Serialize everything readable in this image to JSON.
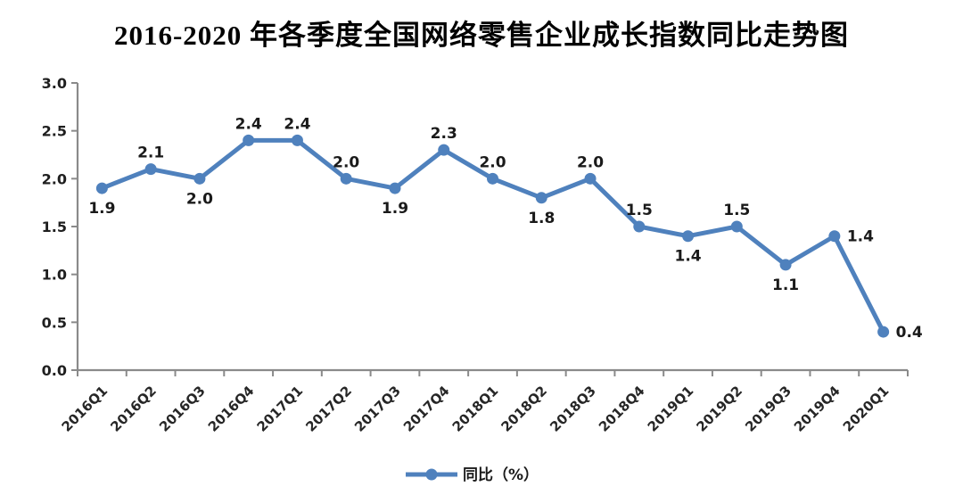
{
  "title": "2016-2020 年各季度全国网络零售企业成长指数同比走势图",
  "chart_data": {
    "type": "line",
    "title": "2016-2020 年各季度全国网络零售企业成长指数同比走势图",
    "categories": [
      "2016Q1",
      "2016Q2",
      "2016Q3",
      "2016Q4",
      "2017Q1",
      "2017Q2",
      "2017Q3",
      "2017Q4",
      "2018Q1",
      "2018Q2",
      "2018Q3",
      "2018Q4",
      "2019Q1",
      "2019Q2",
      "2019Q3",
      "2019Q4",
      "2020Q1"
    ],
    "series": [
      {
        "name": "同比（%）",
        "values": [
          1.9,
          2.1,
          2.0,
          2.4,
          2.4,
          2.0,
          1.9,
          2.3,
          2.0,
          1.8,
          2.0,
          1.5,
          1.4,
          1.5,
          1.1,
          1.4,
          0.4
        ],
        "color": "#4f81bd",
        "label_positions": [
          "below",
          "above",
          "below",
          "above",
          "above",
          "above",
          "below",
          "above",
          "above",
          "below",
          "above",
          "above",
          "below",
          "above",
          "below",
          "right",
          "right"
        ]
      }
    ],
    "xlabel": "",
    "ylabel": "",
    "ylim": [
      0.0,
      3.0
    ],
    "ytick_step": 0.5,
    "label_decimals": 1,
    "grid": false,
    "data_labels": true,
    "legend_position": "bottom",
    "x_label_rotation": -45,
    "axis_color": "#8a8a8a",
    "text_color": "#1a1a1a",
    "background_color": "#ffffff"
  },
  "legend": {
    "label": "同比（%）"
  }
}
